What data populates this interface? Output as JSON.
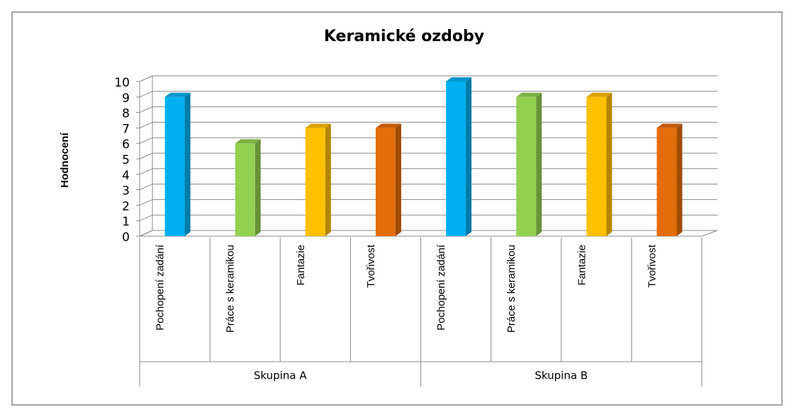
{
  "chart_data": {
    "type": "bar3d",
    "title": "Keramické ozdoby",
    "y_label": "Hodnocení",
    "categories": [
      "Pochopení zadání",
      "Práce s keramikou",
      "Fantazie",
      "Tvořivost",
      "Pochopení  zadání",
      "Práce s keramikou",
      "Fantazie",
      "Tvořivost"
    ],
    "groups": [
      {
        "name": "Skupina A",
        "size": 4
      },
      {
        "name": "Skupina B",
        "size": 4
      }
    ],
    "values": [
      9,
      6,
      7,
      7,
      10,
      9,
      9,
      7
    ],
    "colors": [
      "#00b0f0",
      "#92d050",
      "#ffc000",
      "#e46c0a",
      "#00b0f0",
      "#92d050",
      "#ffc000",
      "#e46c0a"
    ],
    "ylim": [
      0,
      10
    ],
    "yticks": [
      0,
      1,
      2,
      3,
      4,
      5,
      6,
      7,
      8,
      9,
      10
    ],
    "grid": true
  }
}
